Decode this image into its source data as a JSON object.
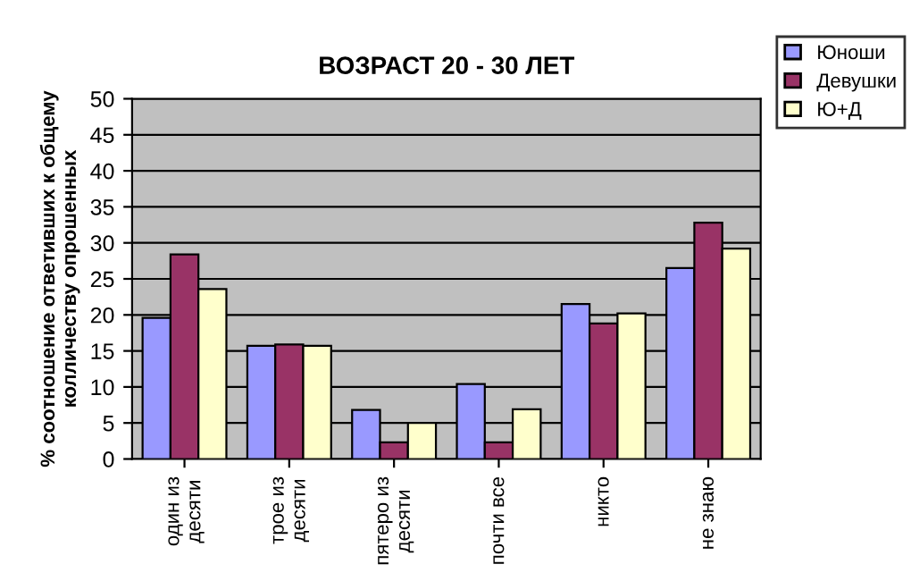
{
  "chart_data": {
    "type": "bar",
    "title": "ВОЗРАСТ 20 - 30 ЛЕТ",
    "ylabel": "% соотношение ответивших к общему\nколличеству опрошенных",
    "categories": [
      "один из\nдесяти",
      "трое из\nдесяти",
      "пятеро из\nдесяти",
      "почти все",
      "никто",
      "не знаю"
    ],
    "series": [
      {
        "name": "Юноши",
        "color": "#9999ff",
        "values": [
          19.6,
          15.7,
          6.8,
          10.4,
          21.5,
          26.5
        ]
      },
      {
        "name": "Девушки",
        "color": "#993366",
        "values": [
          28.4,
          15.9,
          2.3,
          2.3,
          18.8,
          32.8
        ]
      },
      {
        "name": "Ю+Д",
        "color": "#ffffcc",
        "values": [
          23.6,
          15.7,
          5.0,
          6.9,
          20.2,
          29.2
        ]
      }
    ],
    "ylim": [
      0,
      50
    ],
    "yticks": [
      0,
      5,
      10,
      15,
      20,
      25,
      30,
      35,
      40,
      45,
      50
    ],
    "grid": "y",
    "legend": "top right"
  }
}
